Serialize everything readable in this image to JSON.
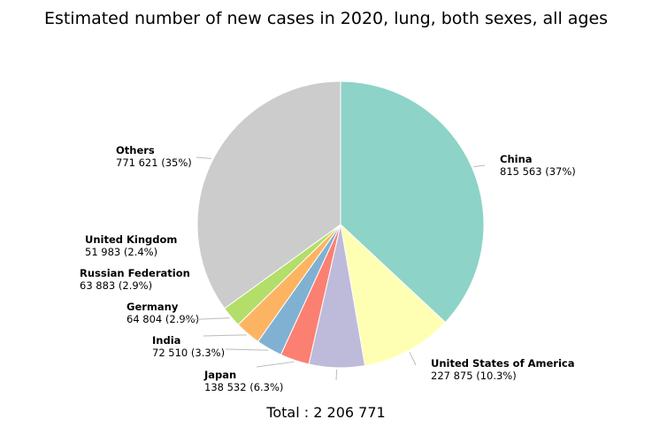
{
  "chart_data": {
    "type": "pie",
    "title": "Estimated number of new cases in 2020, lung, both sexes, all ages",
    "total_label": "Total : 2 206 771",
    "slices": [
      {
        "name": "China",
        "value": 815563,
        "value_label": "815 563 (37%)",
        "color": "#8dd3c7"
      },
      {
        "name": "United States of America",
        "value": 227875,
        "value_label": "227 875 (10.3%)",
        "color": "#ffffb3"
      },
      {
        "name": "Japan",
        "value": 138532,
        "value_label": "138 532 (6.3%)",
        "color": "#bebada"
      },
      {
        "name": "India",
        "value": 72510,
        "value_label": "72 510 (3.3%)",
        "color": "#fb8072"
      },
      {
        "name": "Germany",
        "value": 64804,
        "value_label": "64 804 (2.9%)",
        "color": "#80b1d3"
      },
      {
        "name": "Russian Federation",
        "value": 63883,
        "value_label": "63 883 (2.9%)",
        "color": "#fdb462"
      },
      {
        "name": "United Kingdom",
        "value": 51983,
        "value_label": "51 983 (2.4%)",
        "color": "#b3de69"
      },
      {
        "name": "Others",
        "value": 771621,
        "value_label": "771 621 (35%)",
        "color": "#cccccc"
      }
    ]
  }
}
